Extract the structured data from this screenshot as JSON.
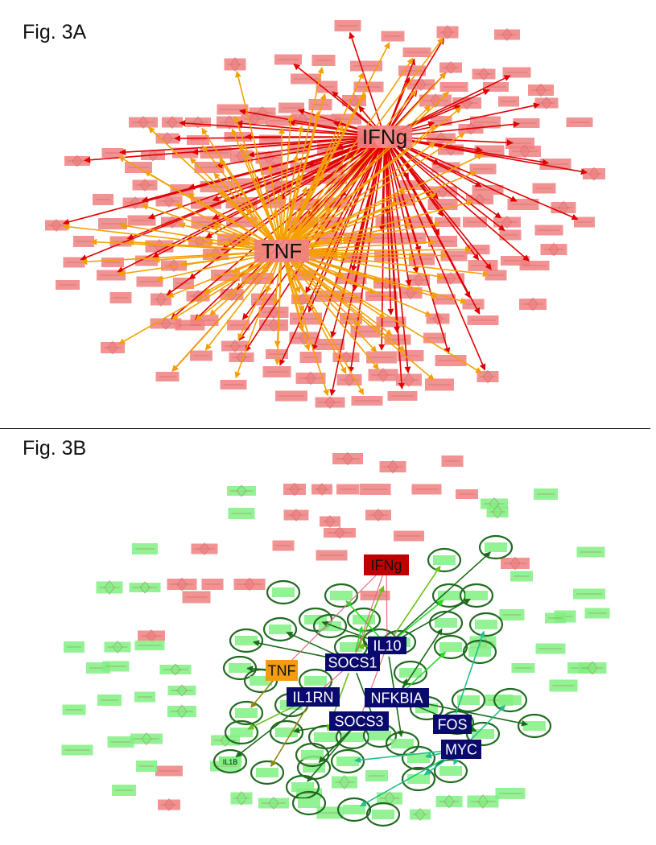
{
  "panels": {
    "a": {
      "label": "Fig. 3A"
    },
    "b": {
      "label": "Fig. 3B"
    }
  },
  "hubs_a": [
    {
      "id": "IFNg",
      "label": "IFNg"
    },
    {
      "id": "TNF",
      "label": "TNF"
    }
  ],
  "hubs_b": [
    {
      "id": "IFNg",
      "label": "IFNg",
      "fill": "#c00000",
      "text": "#111111"
    },
    {
      "id": "TNF",
      "label": "TNF",
      "fill": "#f39c12",
      "text": "#111111"
    },
    {
      "id": "IL10",
      "label": "IL10",
      "fill": "#0a0a6e",
      "text": "#ffffff"
    },
    {
      "id": "SOCS1",
      "label": "SOCS1",
      "fill": "#0a0a6e",
      "text": "#ffffff"
    },
    {
      "id": "IL1RN",
      "label": "IL1RN",
      "fill": "#0a0a6e",
      "text": "#ffffff"
    },
    {
      "id": "NFKBIA",
      "label": "NFKBIA",
      "fill": "#0a0a6e",
      "text": "#ffffff"
    },
    {
      "id": "SOCS3",
      "label": "SOCS3",
      "fill": "#0a0a6e",
      "text": "#ffffff"
    },
    {
      "id": "FOS",
      "label": "FOS",
      "fill": "#0a0a6e",
      "text": "#ffffff"
    },
    {
      "id": "MYC",
      "label": "MYC",
      "fill": "#0a0a6e",
      "text": "#ffffff"
    }
  ],
  "target_labels_b": [
    {
      "id": "IL1B",
      "label": "IL1B"
    }
  ],
  "colors": {
    "gene_node_red": "#f08080",
    "gene_node_green": "#80f080",
    "edge_ifng": "#e00000",
    "edge_tnf": "#f5a000",
    "target_ring": "#1f6b1f",
    "divider": "#222222"
  }
}
